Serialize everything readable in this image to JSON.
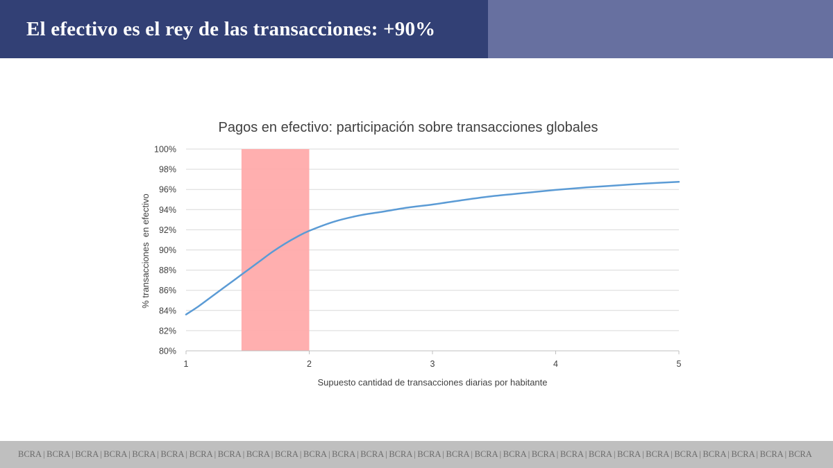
{
  "slide": {
    "title": "El efectivo es el rey de las transacciones: +90%",
    "footer": "BCRA | BCRA | BCRA | BCRA | BCRA | BCRA | BCRA | BCRA | BCRA | BCRA | BCRA | BCRA | BCRA | BCRA | BCRA | BCRA | BCRA | BCRA | BCRA | BCRA | BCRA | BCRA | BCRA | BCRA | BCRA | BCRA | BCRA | BCRA",
    "colors": {
      "header": "#324075",
      "header_accent": "#6770a0",
      "footer": "#bfbfbf",
      "line": "#5b9bd5",
      "highlight": "#ffabab"
    }
  },
  "chart_data": {
    "type": "line",
    "title": "Pagos en efectivo: participación sobre transacciones globales",
    "xlabel": "Supuesto cantidad de transacciones diarias por habitante",
    "ylabel": "% transacciones  en efectivo",
    "xlim": [
      1,
      5
    ],
    "ylim": [
      80,
      100
    ],
    "x_ticks": [
      1,
      2,
      3,
      4,
      5
    ],
    "x_tick_labels": [
      "1",
      "2",
      "3",
      "4",
      "5"
    ],
    "y_ticks": [
      80,
      82,
      84,
      86,
      88,
      90,
      92,
      94,
      96,
      98,
      100
    ],
    "y_tick_labels": [
      "80%",
      "82%",
      "84%",
      "86%",
      "88%",
      "90%",
      "92%",
      "94%",
      "96%",
      "98%",
      "100%"
    ],
    "grid": true,
    "highlight_band": {
      "x_from": 1.45,
      "x_to": 2.0
    },
    "series": [
      {
        "x": [
          1.0,
          1.1,
          1.2,
          1.3,
          1.4,
          1.5,
          1.6,
          1.7,
          1.8,
          1.9,
          2.0,
          2.2,
          2.4,
          2.6,
          2.8,
          3.0,
          3.25,
          3.5,
          3.75,
          4.0,
          4.25,
          4.5,
          4.75,
          5.0
        ],
        "values": [
          83.6,
          84.4,
          85.3,
          86.2,
          87.1,
          88.0,
          88.9,
          89.8,
          90.6,
          91.3,
          91.9,
          92.8,
          93.4,
          93.8,
          94.2,
          94.5,
          94.95,
          95.35,
          95.65,
          95.95,
          96.2,
          96.4,
          96.6,
          96.75
        ]
      }
    ]
  }
}
